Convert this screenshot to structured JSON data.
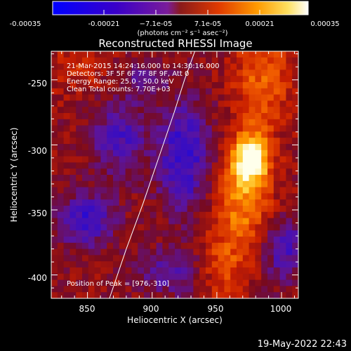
{
  "colorbar": {
    "tick_labels": [
      "-0.00035",
      "-0.00021",
      "−7.1e-05",
      "7.1e-05",
      "0.00021",
      "0.00035"
    ],
    "unit_label": "(photons cm⁻² s⁻¹ asec⁻²)",
    "range": [
      -0.00035,
      0.00035
    ]
  },
  "chart_data": {
    "type": "heatmap",
    "title": "Reconstructed RHESSI Image",
    "xlabel": "Heliocentric X (arcsec)",
    "ylabel": "Heliocentric Y (arcsec)",
    "xlim": [
      822,
      1013
    ],
    "ylim": [
      -418,
      -228
    ],
    "xticks": [
      850,
      900,
      950,
      1000
    ],
    "yticks": [
      -250,
      -300,
      -350,
      -400
    ],
    "info_lines": [
      "21-Mar-2015 14:24:16.000 to 14:30:16.000",
      "Detectors: 3F 5F 6F 7F 8F 9F, Att 0",
      "Energy Range: 25.0 - 50.0 keV",
      "Clean     Total counts: 7.70E+03"
    ],
    "peak_label": "Position of Peak = [976,-310]",
    "peak": {
      "x": 976,
      "y": -310
    },
    "limb_points": [
      [
        867,
        -418
      ],
      [
        880,
        -380
      ],
      [
        893,
        -345
      ],
      [
        905,
        -310
      ],
      [
        917,
        -275
      ],
      [
        925,
        -250
      ],
      [
        933,
        -228
      ]
    ],
    "blobs": [
      {
        "x": 976,
        "y": -310,
        "sx": 10,
        "sy": 14,
        "amp": 1.0
      },
      {
        "x": 970,
        "y": -345,
        "sx": 16,
        "sy": 24,
        "amp": 0.55
      },
      {
        "x": 985,
        "y": -250,
        "sx": 15,
        "sy": 28,
        "amp": 0.45
      },
      {
        "x": 955,
        "y": -395,
        "sx": 14,
        "sy": 18,
        "amp": 0.35
      },
      {
        "x": 840,
        "y": -240,
        "sx": 20,
        "sy": 15,
        "amp": 0.2
      },
      {
        "x": 925,
        "y": -310,
        "sx": 14,
        "sy": 30,
        "amp": -0.6
      },
      {
        "x": 875,
        "y": -295,
        "sx": 15,
        "sy": 20,
        "amp": -0.45
      },
      {
        "x": 848,
        "y": -358,
        "sx": 16,
        "sy": 14,
        "amp": -0.55
      },
      {
        "x": 915,
        "y": -398,
        "sx": 18,
        "sy": 12,
        "amp": -0.4
      },
      {
        "x": 1002,
        "y": -380,
        "sx": 12,
        "sy": 18,
        "amp": -0.45
      },
      {
        "x": 893,
        "y": -250,
        "sx": 12,
        "sy": 12,
        "amp": -0.25
      }
    ]
  },
  "footer": {
    "timestamp": "19-May-2022 22:43"
  }
}
